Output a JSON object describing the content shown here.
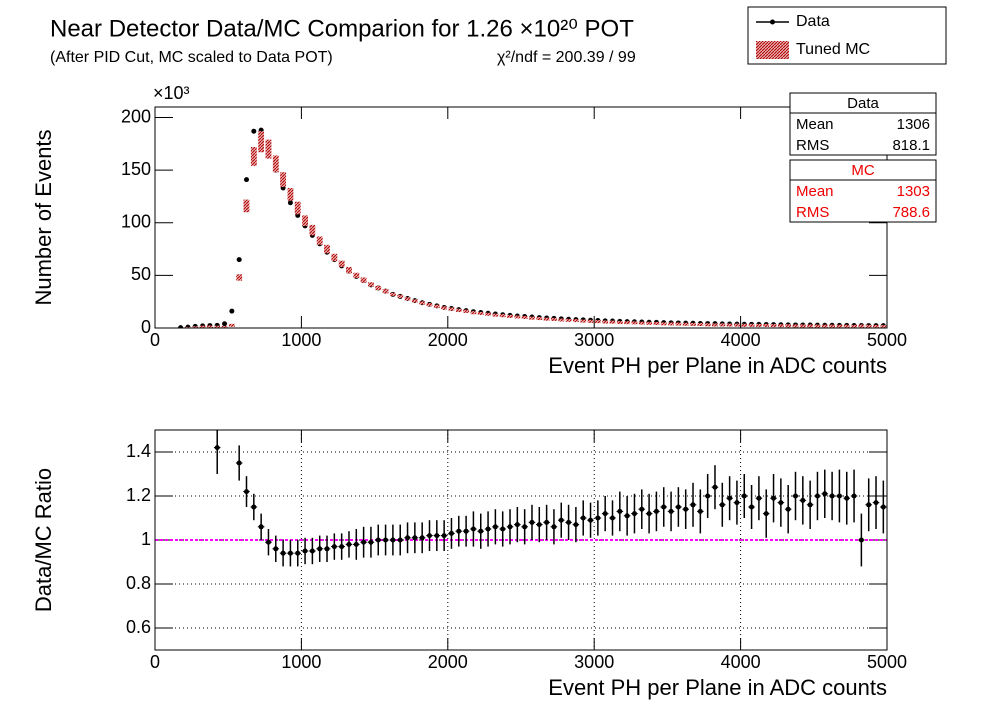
{
  "chart_data": [
    {
      "type": "scatter",
      "title": "Near Detector Data/MC Comparion for 1.26 ×10²⁰ POT",
      "subtitle": "(After PID Cut, MC scaled to Data POT)",
      "annotation": "χ²/ndf = 200.39 / 99",
      "y_multiplier": "×10³",
      "xlabel": "Event PH per Plane in ADC counts",
      "ylabel": "Number of Events",
      "x": [
        175,
        225,
        275,
        325,
        375,
        425,
        475,
        525,
        575,
        625,
        675,
        725,
        775,
        825,
        875,
        925,
        975,
        1025,
        1075,
        1125,
        1175,
        1225,
        1275,
        1325,
        1375,
        1425,
        1475,
        1525,
        1575,
        1625,
        1675,
        1725,
        1775,
        1825,
        1875,
        1925,
        1975,
        2025,
        2075,
        2125,
        2175,
        2225,
        2275,
        2325,
        2375,
        2425,
        2475,
        2525,
        2575,
        2625,
        2675,
        2725,
        2775,
        2825,
        2875,
        2925,
        2975,
        3025,
        3075,
        3125,
        3175,
        3225,
        3275,
        3325,
        3375,
        3425,
        3475,
        3525,
        3575,
        3625,
        3675,
        3725,
        3775,
        3825,
        3875,
        3925,
        3975,
        4025,
        4075,
        4125,
        4175,
        4225,
        4275,
        4325,
        4375,
        4425,
        4475,
        4525,
        4575,
        4625,
        4675,
        4725,
        4775,
        4825,
        4875,
        4925,
        4975
      ],
      "series": [
        {
          "name": "Data",
          "color": "#000000",
          "style": "markers",
          "values": [
            0.3,
            0.8,
            1.5,
            2,
            2.3,
            2.5,
            4,
            16,
            65,
            141,
            187,
            188,
            168,
            150,
            133,
            119,
            107,
            97,
            88,
            80,
            72,
            65,
            59,
            54,
            49,
            45,
            41,
            38,
            35,
            32,
            30,
            28,
            26,
            24,
            22.5,
            21,
            19.5,
            18.5,
            17.5,
            16.5,
            15.5,
            14.7,
            14,
            13.3,
            12.6,
            12,
            11.4,
            10.9,
            10.4,
            9.9,
            9.5,
            9.1,
            8.7,
            8.3,
            8,
            7.7,
            7.4,
            7.1,
            6.8,
            6.6,
            6.3,
            6.1,
            5.9,
            5.7,
            5.5,
            5.3,
            5.1,
            4.9,
            4.8,
            4.6,
            4.5,
            4.3,
            4.2,
            4.1,
            3.9,
            3.8,
            3.7,
            3.6,
            3.5,
            3.4,
            3.3,
            3.2,
            3.1,
            3.0,
            2.9,
            2.85,
            2.8,
            2.7,
            2.65,
            2.6,
            2.5,
            2.45,
            2.4,
            2.35,
            2.3,
            2.25,
            2.2
          ]
        },
        {
          "name": "Tuned MC",
          "color": "#cc0000",
          "style": "band",
          "values": [
            0.3,
            0.7,
            1.3,
            1.8,
            2,
            1.8,
            1.5,
            3,
            48,
            116,
            163,
            177,
            170,
            156,
            141,
            127,
            114,
            102,
            93,
            83,
            75,
            67,
            61,
            55,
            50,
            45.5,
            41.4,
            38,
            35,
            32,
            30,
            27.7,
            25.7,
            23.8,
            22.1,
            20.6,
            19.1,
            18,
            16.8,
            15.9,
            14.8,
            14.1,
            13.3,
            12.5,
            12,
            11.3,
            10.7,
            10.3,
            9.6,
            9.3,
            8.8,
            8.6,
            8,
            7.7,
            7.5,
            7,
            6.8,
            6.5,
            6.1,
            6,
            5.6,
            5.5,
            5.3,
            5,
            4.9,
            4.7,
            4.4,
            4.3,
            4.2,
            4,
            3.9,
            3.8,
            3.5,
            3.3,
            3.4,
            3.2,
            3.2,
            3,
            3,
            2.9,
            2.9,
            2.7,
            2.6,
            2.6,
            2.4,
            2.4,
            2.4,
            2.25,
            2.2,
            2.2,
            2.1,
            2.1,
            2,
            2.35,
            2,
            1.9,
            1.9
          ],
          "errors": [
            0.2,
            0.3,
            0.3,
            0.4,
            0.4,
            0.4,
            0.4,
            1,
            3,
            6,
            9,
            10,
            9,
            8,
            7,
            6,
            6,
            5,
            5,
            4,
            4,
            3.5,
            3,
            3,
            2.5,
            2.5,
            2,
            2,
            2,
            1.5,
            1.5,
            1.5,
            1.5,
            1.5,
            1.5,
            1.5,
            1.5,
            1.5,
            1.5,
            1.5,
            1.2,
            1.2,
            1.2,
            1.2,
            1.2,
            1.2,
            1.2,
            1.2,
            1.2,
            1.2,
            1,
            1,
            1,
            1,
            1,
            1,
            1,
            1,
            1,
            1,
            1,
            1,
            1,
            1,
            1,
            1,
            1,
            1,
            1,
            1,
            1,
            1,
            1,
            1,
            1,
            1,
            1,
            1,
            1,
            1,
            1,
            1,
            1,
            1,
            1,
            1,
            1,
            1,
            1,
            1,
            1,
            1,
            1,
            1,
            1,
            1,
            1
          ]
        }
      ],
      "xlim": [
        0,
        5000
      ],
      "xticks": [
        0,
        1000,
        2000,
        3000,
        4000,
        5000
      ],
      "ylim": [
        0,
        210
      ],
      "yticks": [
        0,
        50,
        100,
        150,
        200
      ],
      "grid": false,
      "legend": "top-right",
      "stats": [
        {
          "title": "Data",
          "color": "#000000",
          "rows": [
            {
              "label": "Mean",
              "value": 1306
            },
            {
              "label": "RMS",
              "value": 818.1
            }
          ]
        },
        {
          "title": "MC",
          "color": "#ee0000",
          "rows": [
            {
              "label": "Mean",
              "value": 1303
            },
            {
              "label": "RMS",
              "value": 788.6
            }
          ]
        }
      ]
    },
    {
      "type": "scatter",
      "xlabel": "Event PH per Plane in ADC counts",
      "ylabel": "Data/MC Ratio",
      "x": [
        175,
        225,
        275,
        325,
        375,
        425,
        475,
        525,
        575,
        625,
        675,
        725,
        775,
        825,
        875,
        925,
        975,
        1025,
        1075,
        1125,
        1175,
        1225,
        1275,
        1325,
        1375,
        1425,
        1475,
        1525,
        1575,
        1625,
        1675,
        1725,
        1775,
        1825,
        1875,
        1925,
        1975,
        2025,
        2075,
        2125,
        2175,
        2225,
        2275,
        2325,
        2375,
        2425,
        2475,
        2525,
        2575,
        2625,
        2675,
        2725,
        2775,
        2825,
        2875,
        2925,
        2975,
        3025,
        3075,
        3125,
        3175,
        3225,
        3275,
        3325,
        3375,
        3425,
        3475,
        3525,
        3575,
        3625,
        3675,
        3725,
        3775,
        3825,
        3875,
        3925,
        3975,
        4025,
        4075,
        4125,
        4175,
        4225,
        4275,
        4325,
        4375,
        4425,
        4475,
        4525,
        4575,
        4625,
        4675,
        4725,
        4775,
        4825,
        4875,
        4925,
        4975
      ],
      "series": [
        {
          "color": "#000000",
          "style": "markers",
          "values": [
            null,
            null,
            null,
            null,
            null,
            1.42,
            null,
            null,
            1.35,
            1.22,
            1.15,
            1.06,
            0.99,
            0.96,
            0.94,
            0.94,
            0.94,
            0.95,
            0.95,
            0.96,
            0.96,
            0.97,
            0.97,
            0.98,
            0.98,
            0.99,
            0.99,
            1.0,
            1.0,
            1.0,
            1.0,
            1.01,
            1.01,
            1.01,
            1.02,
            1.02,
            1.02,
            1.03,
            1.04,
            1.04,
            1.05,
            1.04,
            1.05,
            1.06,
            1.05,
            1.06,
            1.07,
            1.06,
            1.08,
            1.07,
            1.08,
            1.06,
            1.09,
            1.08,
            1.07,
            1.1,
            1.09,
            1.1,
            1.12,
            1.1,
            1.13,
            1.11,
            1.12,
            1.14,
            1.12,
            1.13,
            1.15,
            1.13,
            1.15,
            1.14,
            1.16,
            1.13,
            1.2,
            1.24,
            1.16,
            1.19,
            1.17,
            1.2,
            1.15,
            1.19,
            1.12,
            1.19,
            1.17,
            1.14,
            1.2,
            1.18,
            1.16,
            1.2,
            1.21,
            1.2,
            1.2,
            1.19,
            1.2,
            1.0,
            1.16,
            1.17,
            1.15
          ],
          "errors": [
            null,
            null,
            null,
            null,
            null,
            0.12,
            null,
            null,
            0.08,
            0.07,
            0.06,
            0.06,
            0.06,
            0.06,
            0.06,
            0.06,
            0.06,
            0.06,
            0.06,
            0.06,
            0.06,
            0.06,
            0.06,
            0.06,
            0.07,
            0.07,
            0.07,
            0.07,
            0.07,
            0.07,
            0.07,
            0.07,
            0.07,
            0.07,
            0.07,
            0.07,
            0.07,
            0.07,
            0.07,
            0.07,
            0.08,
            0.08,
            0.08,
            0.08,
            0.08,
            0.08,
            0.08,
            0.08,
            0.08,
            0.08,
            0.08,
            0.08,
            0.08,
            0.08,
            0.08,
            0.08,
            0.08,
            0.08,
            0.08,
            0.08,
            0.09,
            0.09,
            0.09,
            0.09,
            0.09,
            0.09,
            0.09,
            0.09,
            0.09,
            0.09,
            0.1,
            0.1,
            0.1,
            0.1,
            0.1,
            0.1,
            0.1,
            0.1,
            0.1,
            0.1,
            0.11,
            0.11,
            0.11,
            0.11,
            0.11,
            0.11,
            0.11,
            0.11,
            0.11,
            0.11,
            0.12,
            0.12,
            0.12,
            0.12,
            0.12,
            0.12,
            0.12
          ]
        }
      ],
      "reference_line": 1,
      "reference_color": "#ff00ff",
      "xlim": [
        0,
        5000
      ],
      "xticks": [
        0,
        1000,
        2000,
        3000,
        4000,
        5000
      ],
      "ylim": [
        0.5,
        1.5
      ],
      "yticks": [
        0.6,
        0.8,
        1,
        1.2,
        1.4
      ],
      "grid": true
    }
  ]
}
